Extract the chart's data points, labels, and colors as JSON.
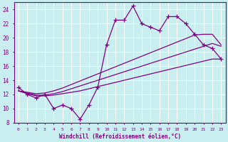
{
  "xlabel": "Windchill (Refroidissement éolien,°C)",
  "x_values": [
    0,
    1,
    2,
    3,
    4,
    5,
    6,
    7,
    8,
    9,
    10,
    11,
    12,
    13,
    14,
    15,
    16,
    17,
    18,
    19,
    20,
    21,
    22,
    23
  ],
  "line_wiggly": [
    13.0,
    12.0,
    11.5,
    12.0,
    10.0,
    10.5,
    10.0,
    8.5,
    10.5,
    13.0,
    19.0,
    22.5,
    22.5,
    24.5,
    22.0,
    21.5,
    21.0,
    23.0,
    23.0,
    22.0,
    20.5,
    19.0,
    18.5,
    17.0
  ],
  "line_low": [
    12.5,
    12.1,
    11.8,
    11.8,
    11.9,
    12.1,
    12.3,
    12.5,
    12.8,
    13.1,
    13.4,
    13.7,
    14.0,
    14.3,
    14.6,
    14.9,
    15.2,
    15.5,
    15.8,
    16.1,
    16.4,
    16.7,
    17.0,
    17.0
  ],
  "line_mid": [
    12.5,
    12.2,
    11.9,
    11.9,
    12.1,
    12.4,
    12.8,
    13.2,
    13.6,
    14.0,
    14.4,
    14.8,
    15.2,
    15.6,
    16.0,
    16.4,
    16.8,
    17.2,
    17.6,
    18.0,
    18.4,
    18.8,
    19.2,
    18.8
  ],
  "line_high": [
    12.5,
    12.3,
    12.1,
    12.2,
    12.5,
    12.9,
    13.4,
    13.9,
    14.4,
    14.9,
    15.4,
    15.9,
    16.4,
    16.9,
    17.4,
    17.9,
    18.4,
    18.9,
    19.4,
    19.9,
    20.4,
    20.5,
    20.5,
    19.0
  ],
  "color": "#800080",
  "bg_color": "#c8eef0",
  "grid_color": "#ffffff",
  "ylim": [
    8,
    25
  ],
  "yticks": [
    8,
    10,
    12,
    14,
    16,
    18,
    20,
    22,
    24
  ],
  "xlim": [
    -0.5,
    23.5
  ]
}
